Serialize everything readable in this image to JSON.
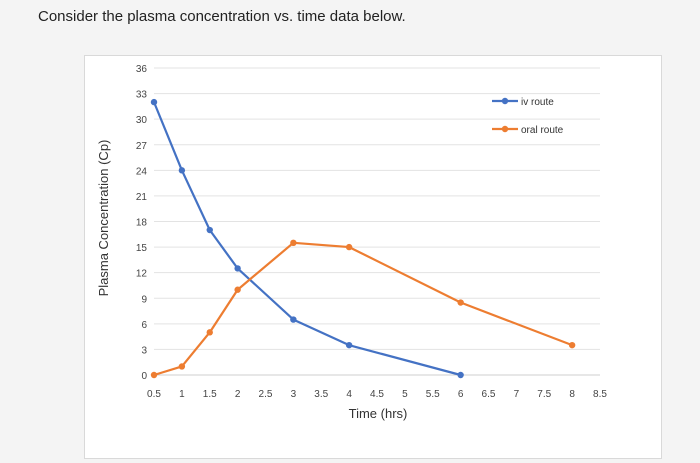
{
  "question": "Consider the plasma concentration vs. time data below.",
  "chart_data": {
    "type": "line",
    "title": "",
    "xlabel": "Time (hrs)",
    "ylabel": "Plasma Concentration (Cp)",
    "xlim": [
      0.5,
      8.5
    ],
    "ylim": [
      0,
      36
    ],
    "x_ticks": [
      0.5,
      1,
      1.5,
      2,
      2.5,
      3,
      3.5,
      4,
      4.5,
      5,
      5.5,
      6,
      6.5,
      7,
      7.5,
      8,
      8.5
    ],
    "y_ticks": [
      0,
      3,
      6,
      9,
      12,
      15,
      18,
      21,
      24,
      27,
      30,
      33,
      36
    ],
    "grid": "horizontal",
    "legend_position": "top-right",
    "series": [
      {
        "name": "iv route",
        "color": "#4472c4",
        "x": [
          0.5,
          1,
          1.5,
          2,
          3,
          4,
          6
        ],
        "y": [
          32,
          24,
          17,
          12.5,
          6.5,
          3.5,
          0
        ]
      },
      {
        "name": "oral route",
        "color": "#ed7d31",
        "x": [
          0.5,
          1,
          1.5,
          2,
          3,
          4,
          6,
          8
        ],
        "y": [
          0,
          1,
          5,
          10,
          15.5,
          15,
          8.5,
          3.5
        ]
      }
    ]
  }
}
